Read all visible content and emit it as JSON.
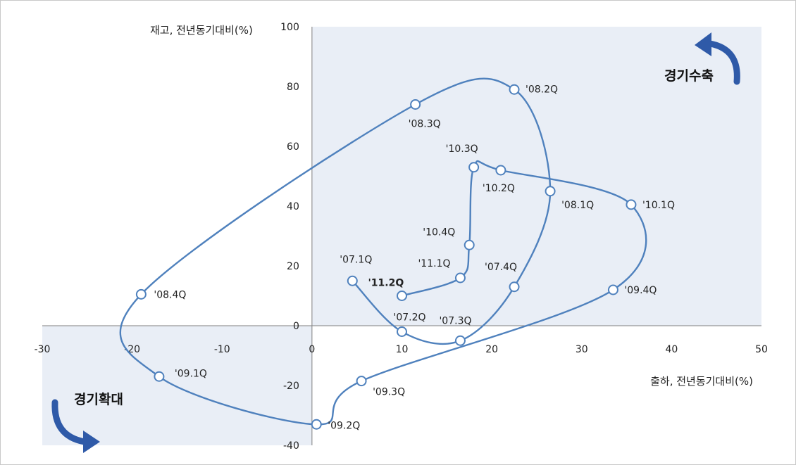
{
  "chart_data": {
    "type": "scatter",
    "xlabel": "출하, 전년동기대비(%)",
    "ylabel": "재고, 전년동기대비(%)",
    "xlim": [
      -30,
      50
    ],
    "ylim": [
      -40,
      100
    ],
    "x_ticks": [
      "-30",
      "-20",
      "-10",
      "0",
      "10",
      "20",
      "30",
      "40",
      "50"
    ],
    "y_ticks": [
      "-40",
      "-20",
      "0",
      "20",
      "40",
      "60",
      "80",
      "100"
    ],
    "quadrant_labels": {
      "contraction": "경기수축",
      "expansion": "경기확대"
    },
    "series_color": "#4f81bd",
    "shade_color": "#e9eef6",
    "points": [
      {
        "label": "'07.1Q",
        "x": 4.5,
        "y": 15
      },
      {
        "label": "'07.2Q",
        "x": 10,
        "y": -2
      },
      {
        "label": "'07.3Q",
        "x": 16.5,
        "y": -5
      },
      {
        "label": "'07.4Q",
        "x": 22.5,
        "y": 13
      },
      {
        "label": "'08.1Q",
        "x": 26.5,
        "y": 45
      },
      {
        "label": "'08.2Q",
        "x": 22.5,
        "y": 79
      },
      {
        "label": "'08.3Q",
        "x": 11.5,
        "y": 74
      },
      {
        "label": "'08.4Q",
        "x": -19,
        "y": 10.5
      },
      {
        "label": "'09.1Q",
        "x": -17,
        "y": -17
      },
      {
        "label": "'09.2Q",
        "x": 0.5,
        "y": -33
      },
      {
        "label": "'09.3Q",
        "x": 5.5,
        "y": -18.5
      },
      {
        "label": "'09.4Q",
        "x": 33.5,
        "y": 12
      },
      {
        "label": "'10.1Q",
        "x": 35.5,
        "y": 40.5
      },
      {
        "label": "'10.2Q",
        "x": 21,
        "y": 52
      },
      {
        "label": "'10.3Q",
        "x": 18,
        "y": 53
      },
      {
        "label": "'10.4Q",
        "x": 17.5,
        "y": 27
      },
      {
        "label": "'11.1Q",
        "x": 16.5,
        "y": 16
      },
      {
        "label": "'11.2Q",
        "x": 10,
        "y": 10,
        "bold": true
      }
    ]
  }
}
